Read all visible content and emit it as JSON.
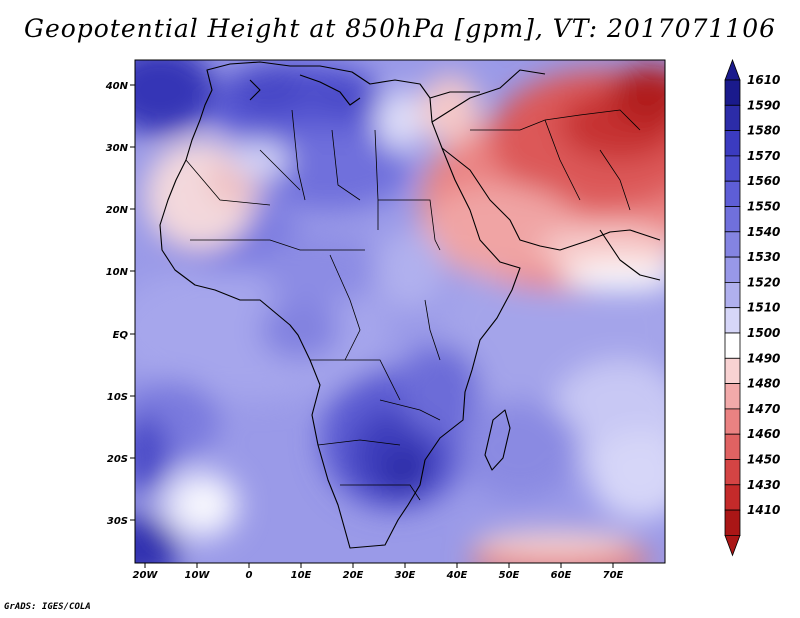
{
  "title": "Geopotential Height at 850hPa [gpm], VT: 2017071106",
  "credit": "GrADS: IGES/COLA",
  "axes": {
    "lon_labels": [
      "20W",
      "10W",
      "0",
      "10E",
      "20E",
      "30E",
      "40E",
      "50E",
      "60E",
      "70E"
    ],
    "lat_labels": [
      "40N",
      "30N",
      "20N",
      "10N",
      "EQ",
      "10S",
      "20S",
      "30S"
    ]
  },
  "colorbar": {
    "levels": [
      "1610",
      "1590",
      "1580",
      "1570",
      "1560",
      "1550",
      "1540",
      "1530",
      "1520",
      "1510",
      "1500",
      "1490",
      "1480",
      "1470",
      "1460",
      "1450",
      "1430",
      "1410"
    ],
    "colors": [
      "#1a1a8c",
      "#2c2ca8",
      "#3b3bc0",
      "#4c4ccc",
      "#5e5ed6",
      "#7070dc",
      "#8484e2",
      "#9898e8",
      "#b0b0ee",
      "#d6d6f8",
      "#ffffff",
      "#f8d2d2",
      "#f2aaaa",
      "#ea8282",
      "#e06262",
      "#d44444",
      "#c42a2a",
      "#aa1616"
    ]
  },
  "chart_data": {
    "type": "heatmap",
    "title": "Geopotential Height at 850hPa [gpm], VT: 2017071106",
    "variable": "Geopotential Height at 850hPa",
    "units": "gpm",
    "valid_time": "2017071106",
    "x_ticks": [
      "20W",
      "10W",
      "0",
      "10E",
      "20E",
      "30E",
      "40E",
      "50E",
      "60E",
      "70E"
    ],
    "y_ticks": [
      "40N",
      "30N",
      "20N",
      "10N",
      "EQ",
      "10S",
      "20S",
      "30S"
    ],
    "colorbar_levels": [
      1610,
      1590,
      1580,
      1570,
      1560,
      1550,
      1540,
      1530,
      1520,
      1510,
      1500,
      1490,
      1480,
      1470,
      1460,
      1450,
      1430,
      1410
    ]
  }
}
